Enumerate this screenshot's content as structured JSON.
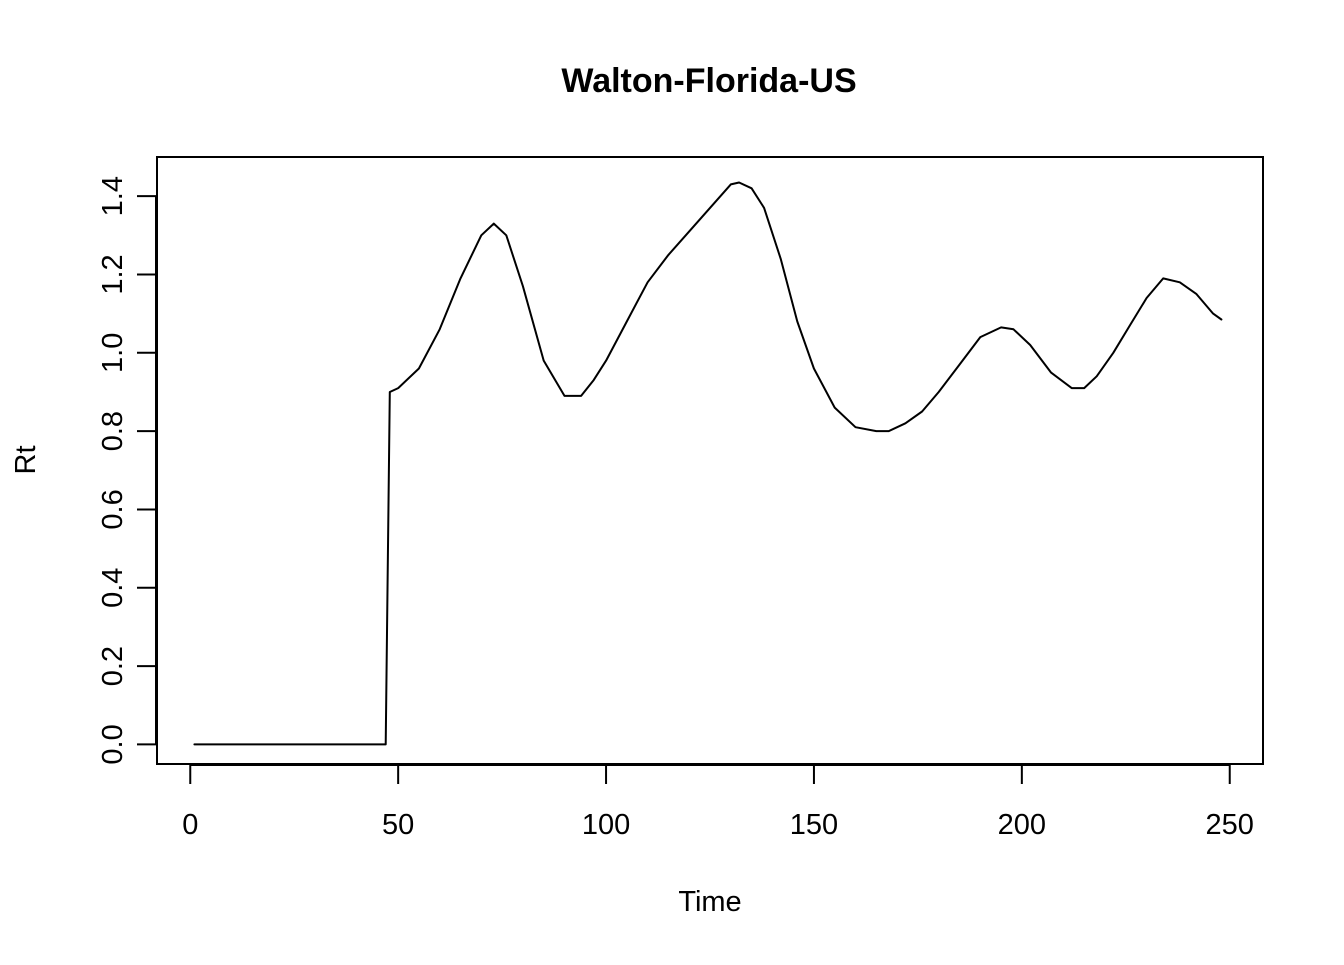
{
  "chart_data": {
    "type": "line",
    "title": "Walton-Florida-US",
    "xlabel": "Time",
    "ylabel": "Rt",
    "xlim": [
      -8,
      258
    ],
    "ylim": [
      -0.05,
      1.5
    ],
    "xticks": [
      0,
      50,
      100,
      150,
      200,
      250
    ],
    "yticks": [
      0.0,
      0.2,
      0.4,
      0.6,
      0.8,
      1.0,
      1.2,
      1.4
    ],
    "xtick_labels": [
      "0",
      "50",
      "100",
      "150",
      "200",
      "250"
    ],
    "ytick_labels": [
      "0.0",
      "0.2",
      "0.4",
      "0.6",
      "0.8",
      "1.0",
      "1.2",
      "1.4"
    ],
    "grid": false,
    "legend": "none",
    "line_color": "#000000",
    "series": [
      {
        "x": [
          1,
          10,
          20,
          30,
          40,
          47,
          48,
          50,
          55,
          60,
          65,
          70,
          73,
          76,
          80,
          85,
          90,
          94,
          97,
          100,
          105,
          110,
          115,
          120,
          125,
          130,
          132,
          135,
          138,
          142,
          146,
          150,
          155,
          160,
          165,
          168,
          172,
          176,
          180,
          185,
          190,
          195,
          198,
          202,
          207,
          212,
          215,
          218,
          222,
          226,
          230,
          234,
          238,
          242,
          246,
          248
        ],
        "y": [
          0,
          0,
          0,
          0,
          0,
          0,
          0.9,
          0.91,
          0.96,
          1.06,
          1.19,
          1.3,
          1.33,
          1.3,
          1.17,
          0.98,
          0.89,
          0.89,
          0.93,
          0.98,
          1.08,
          1.18,
          1.25,
          1.31,
          1.37,
          1.43,
          1.435,
          1.42,
          1.37,
          1.24,
          1.08,
          0.96,
          0.86,
          0.81,
          0.8,
          0.8,
          0.82,
          0.85,
          0.9,
          0.97,
          1.04,
          1.065,
          1.06,
          1.02,
          0.95,
          0.91,
          0.91,
          0.94,
          1.0,
          1.07,
          1.14,
          1.19,
          1.18,
          1.15,
          1.1,
          1.085
        ]
      }
    ]
  }
}
